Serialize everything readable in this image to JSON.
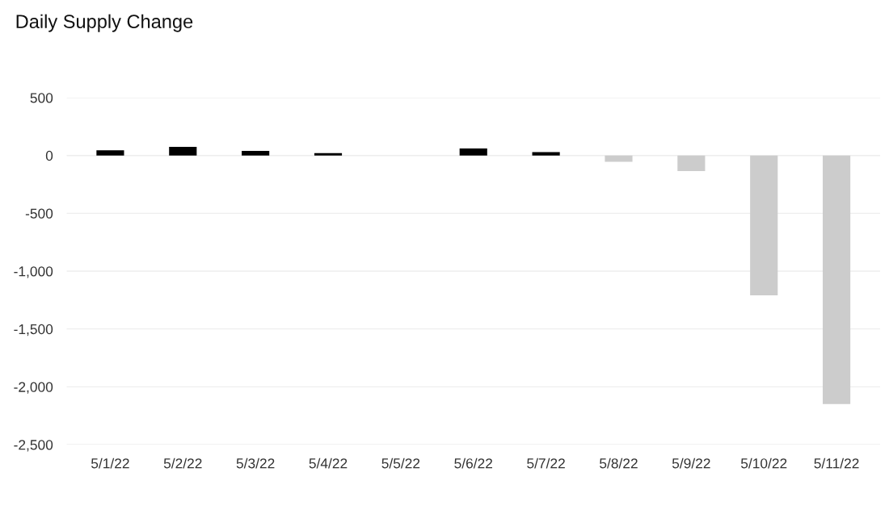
{
  "chart_data": {
    "type": "bar",
    "title": "Daily Supply Change",
    "categories": [
      "5/1/22",
      "5/2/22",
      "5/3/22",
      "5/4/22",
      "5/5/22",
      "5/6/22",
      "5/7/22",
      "5/8/22",
      "5/9/22",
      "5/10/22",
      "5/11/22"
    ],
    "values": [
      45,
      75,
      40,
      20,
      null,
      60,
      30,
      -55,
      -135,
      -1210,
      -2150
    ],
    "colors": [
      "#000000",
      "#000000",
      "#000000",
      "#000000",
      "#cccccc",
      "#000000",
      "#000000",
      "#cccccc",
      "#cccccc",
      "#cccccc",
      "#cccccc"
    ],
    "ylim": [
      -2500,
      500
    ],
    "yticks": [
      500,
      0,
      {
        "value": -500,
        "label": "-500"
      },
      {
        "value": -1000,
        "label": "-1,000"
      },
      {
        "value": -1500,
        "label": "-1,500"
      },
      {
        "value": -2000,
        "label": "-2,000"
      },
      {
        "value": -2500,
        "label": "-2,500"
      }
    ],
    "grid": "y"
  }
}
